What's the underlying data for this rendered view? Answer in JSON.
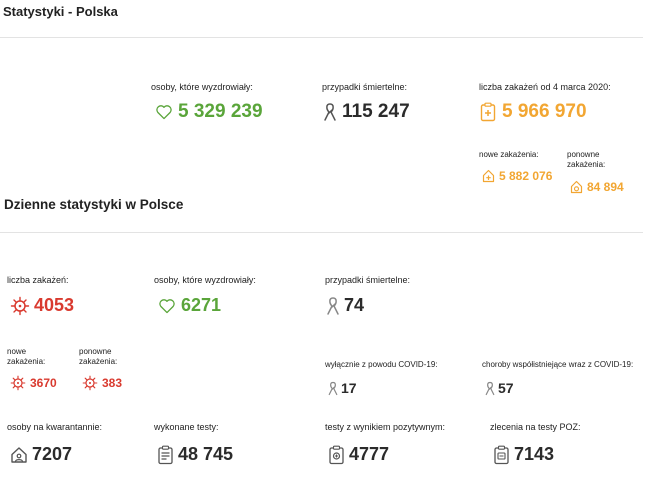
{
  "header": {
    "title": "Statystyki - Polska"
  },
  "totals": {
    "recovered": {
      "label": "osoby, które wyzdrowiały:",
      "value": "5 329 239",
      "icon": "heart-icon"
    },
    "deaths": {
      "label": "przypadki śmiertelne:",
      "value": "115 247",
      "icon": "ribbon-icon"
    },
    "infections": {
      "label": "liczba zakażeń od 4 marca 2020:",
      "value": "5 966 970",
      "icon": "clipboard-plus-icon"
    },
    "new_infections": {
      "label": "nowe zakażenia:",
      "value": "5 882 076"
    },
    "reinfections": {
      "label_line1": "ponowne",
      "label_line2": "zakażenia:",
      "value": "84 894"
    }
  },
  "daily": {
    "title": "Dzienne statystyki w Polsce",
    "infections": {
      "label": "liczba zakażeń:",
      "value": "4053",
      "icon": "virus-icon"
    },
    "recovered": {
      "label": "osoby, które wyzdrowiały:",
      "value": "6271"
    },
    "deaths": {
      "label": "przypadki śmiertelne:",
      "value": "74"
    },
    "new_infections": {
      "label_line1": "nowe",
      "label_line2": "zakażenia:",
      "value": "3670"
    },
    "reinfections": {
      "label_line1": "ponowne",
      "label_line2": "zakażenia:",
      "value": "383"
    },
    "covid_only": {
      "label": "wyłącznie z powodu COVID-19:",
      "value": "17"
    },
    "comorbid": {
      "label": "choroby współistniejące wraz z COVID-19:",
      "value": "57"
    },
    "quarantine": {
      "label": "osoby na kwarantannie:",
      "value": "7207",
      "icon": "house-icon"
    },
    "tests": {
      "label": "wykonane testy:",
      "value": "48 745",
      "icon": "clipboard-list-icon"
    },
    "positive_tests": {
      "label": "testy z wynikiem pozytywnym:",
      "value": "4777",
      "icon": "clipboard-test-icon"
    },
    "poz_orders": {
      "label": "zlecenia na testy POZ:",
      "value": "7143",
      "icon": "clipboard-order-icon"
    }
  },
  "colors": {
    "green": "#5aa53a",
    "orange": "#f2a632",
    "red": "#d93a2f",
    "text": "#2b2b2b",
    "divider": "#e3e3e3"
  }
}
